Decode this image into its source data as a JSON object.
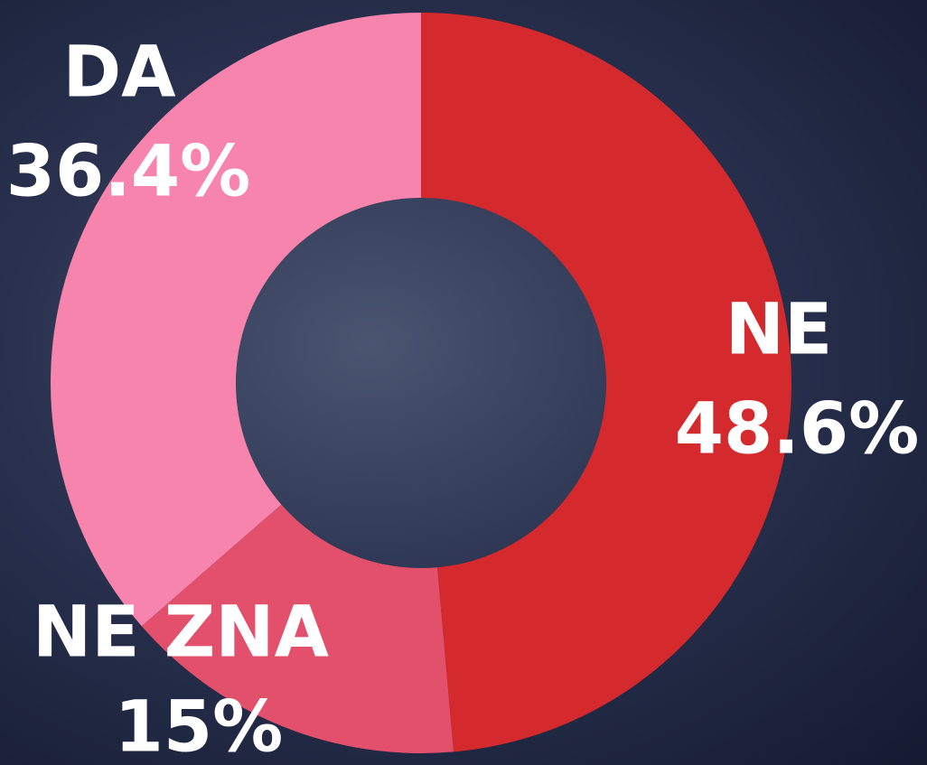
{
  "chart_data": {
    "type": "pie",
    "categories": [
      "NE",
      "NE ZNA",
      "DA"
    ],
    "values": [
      48.6,
      15,
      36.4
    ],
    "value_labels": [
      "48.6%",
      "15%",
      "36.4%"
    ],
    "colors": [
      "#d4292d",
      "#e2506c",
      "#f784ad"
    ]
  }
}
